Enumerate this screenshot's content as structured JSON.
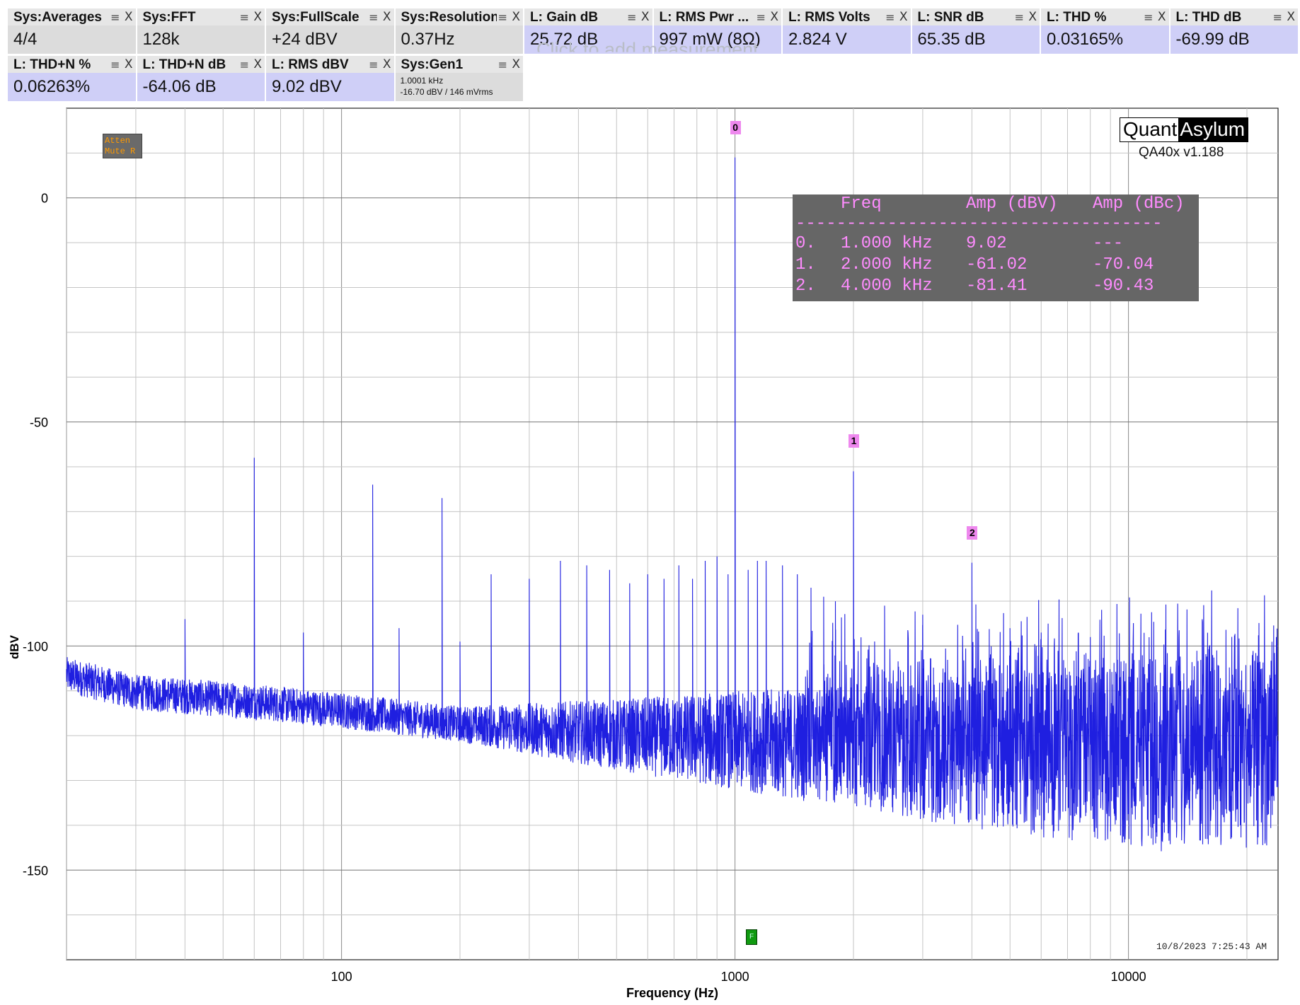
{
  "tiles_row1": [
    {
      "title": "Sys:Averages",
      "value": "4/4",
      "kind": "sys"
    },
    {
      "title": "Sys:FFT",
      "value": "128k",
      "kind": "sys"
    },
    {
      "title": "Sys:FullScale",
      "value": "+24 dBV",
      "kind": "sys"
    },
    {
      "title": "Sys:Resolution",
      "value": "0.37Hz",
      "kind": "sys"
    },
    {
      "title": "L: Gain dB",
      "value": "25.72 dB",
      "kind": "meas"
    },
    {
      "title": "L: RMS Pwr ...",
      "value": "997 mW (8Ω)",
      "kind": "meas"
    },
    {
      "title": "L: RMS Volts",
      "value": "2.824 V",
      "kind": "meas"
    },
    {
      "title": "L: SNR dB",
      "value": "65.35 dB",
      "kind": "meas"
    },
    {
      "title": "L: THD %",
      "value": "0.03165%",
      "kind": "meas"
    },
    {
      "title": "L: THD dB",
      "value": "-69.99 dB",
      "kind": "meas"
    }
  ],
  "tiles_row2": [
    {
      "title": "L: THD+N %",
      "value": "0.06263%",
      "kind": "meas"
    },
    {
      "title": "L: THD+N dB",
      "value": "-64.06 dB",
      "kind": "meas"
    },
    {
      "title": "L: RMS dBV",
      "value": "9.02 dBV",
      "kind": "meas"
    }
  ],
  "gen_tile": {
    "title": "Sys:Gen1",
    "line1": "1.0001 kHz",
    "line2": "-16.70 dBV  / 146 mVrms"
  },
  "tile_icons": {
    "menu": "menu-icon",
    "close": "close-icon"
  },
  "tile_menu_glyph": "≡",
  "tile_close_glyph": "X",
  "add_measurement_hint": "Click to add measurement",
  "logo": {
    "part1": "Quant",
    "part2": "Asylum"
  },
  "version": "QA40x v1.188",
  "atten_badge": {
    "line1": "Atten",
    "line2": "Mute R"
  },
  "harmonics_table": {
    "headers": [
      "Freq",
      "Amp (dBV)",
      "Amp (dBc)"
    ],
    "divider": "------------------------------------",
    "rows": [
      {
        "idx": "0.",
        "freq": "1.000 kHz",
        "amp_dbv": "9.02",
        "amp_dbc": "---"
      },
      {
        "idx": "1.",
        "freq": "2.000 kHz",
        "amp_dbv": "-61.02",
        "amp_dbc": "-70.04"
      },
      {
        "idx": "2.",
        "freq": "4.000 kHz",
        "amp_dbv": "-81.41",
        "amp_dbc": "-90.43"
      }
    ]
  },
  "markers": [
    "0",
    "1",
    "2"
  ],
  "generator_marker": "F",
  "timestamp": "10/8/2023 7:25:43 AM",
  "colors": {
    "trace": "#1f1fe0",
    "marker": "#ee88ee",
    "table_bg": "#666666",
    "table_text": "#ff8cff"
  },
  "chart_data": {
    "type": "line",
    "title": "",
    "xlabel": "Frequency (Hz)",
    "ylabel": "dBV",
    "xscale": "log",
    "xlim": [
      20,
      24000
    ],
    "ylim": [
      -170,
      20
    ],
    "x_ticks": [
      {
        "v": 100,
        "label": "100"
      },
      {
        "v": 1000,
        "label": "1000"
      },
      {
        "v": 10000,
        "label": "10000"
      }
    ],
    "y_ticks": [
      {
        "v": 0,
        "label": "0"
      },
      {
        "v": -50,
        "label": "-50"
      },
      {
        "v": -100,
        "label": "-100"
      },
      {
        "v": -150,
        "label": "-150"
      }
    ],
    "grid": true,
    "noise_floor_dbv": [
      [
        20,
        -106
      ],
      [
        30,
        -110
      ],
      [
        60,
        -112
      ],
      [
        100,
        -114
      ],
      [
        200,
        -117
      ],
      [
        500,
        -119
      ],
      [
        1000,
        -120
      ],
      [
        2000,
        -121
      ],
      [
        4000,
        -122
      ],
      [
        10000,
        -122
      ],
      [
        24000,
        -121
      ]
    ],
    "peaks": [
      {
        "x": 40,
        "y": -94
      },
      {
        "x": 60,
        "y": -58
      },
      {
        "x": 80,
        "y": -97
      },
      {
        "x": 120,
        "y": -64
      },
      {
        "x": 140,
        "y": -96
      },
      {
        "x": 180,
        "y": -67
      },
      {
        "x": 200,
        "y": -99
      },
      {
        "x": 240,
        "y": -84
      },
      {
        "x": 300,
        "y": -85
      },
      {
        "x": 360,
        "y": -81
      },
      {
        "x": 420,
        "y": -82
      },
      {
        "x": 480,
        "y": -83
      },
      {
        "x": 540,
        "y": -86
      },
      {
        "x": 600,
        "y": -84
      },
      {
        "x": 660,
        "y": -85
      },
      {
        "x": 720,
        "y": -82
      },
      {
        "x": 780,
        "y": -85
      },
      {
        "x": 840,
        "y": -81
      },
      {
        "x": 900,
        "y": -80
      },
      {
        "x": 960,
        "y": -84
      },
      {
        "x": 1000,
        "y": 9.02
      },
      {
        "x": 1080,
        "y": -83
      },
      {
        "x": 1140,
        "y": -81
      },
      {
        "x": 1200,
        "y": -81
      },
      {
        "x": 1320,
        "y": -82
      },
      {
        "x": 1440,
        "y": -84
      },
      {
        "x": 1560,
        "y": -87
      },
      {
        "x": 1680,
        "y": -89
      },
      {
        "x": 1800,
        "y": -90
      },
      {
        "x": 2000,
        "y": -61.02
      },
      {
        "x": 2400,
        "y": -91
      },
      {
        "x": 3000,
        "y": -93
      },
      {
        "x": 4000,
        "y": -81.41
      },
      {
        "x": 5000,
        "y": -96
      },
      {
        "x": 6000,
        "y": -97
      },
      {
        "x": 8000,
        "y": -98
      }
    ],
    "labeled_markers": [
      {
        "label": "0",
        "x": 1000,
        "y": 9.02
      },
      {
        "label": "1",
        "x": 2000,
        "y": -61.02
      },
      {
        "label": "2",
        "x": 4000,
        "y": -81.41
      }
    ]
  }
}
